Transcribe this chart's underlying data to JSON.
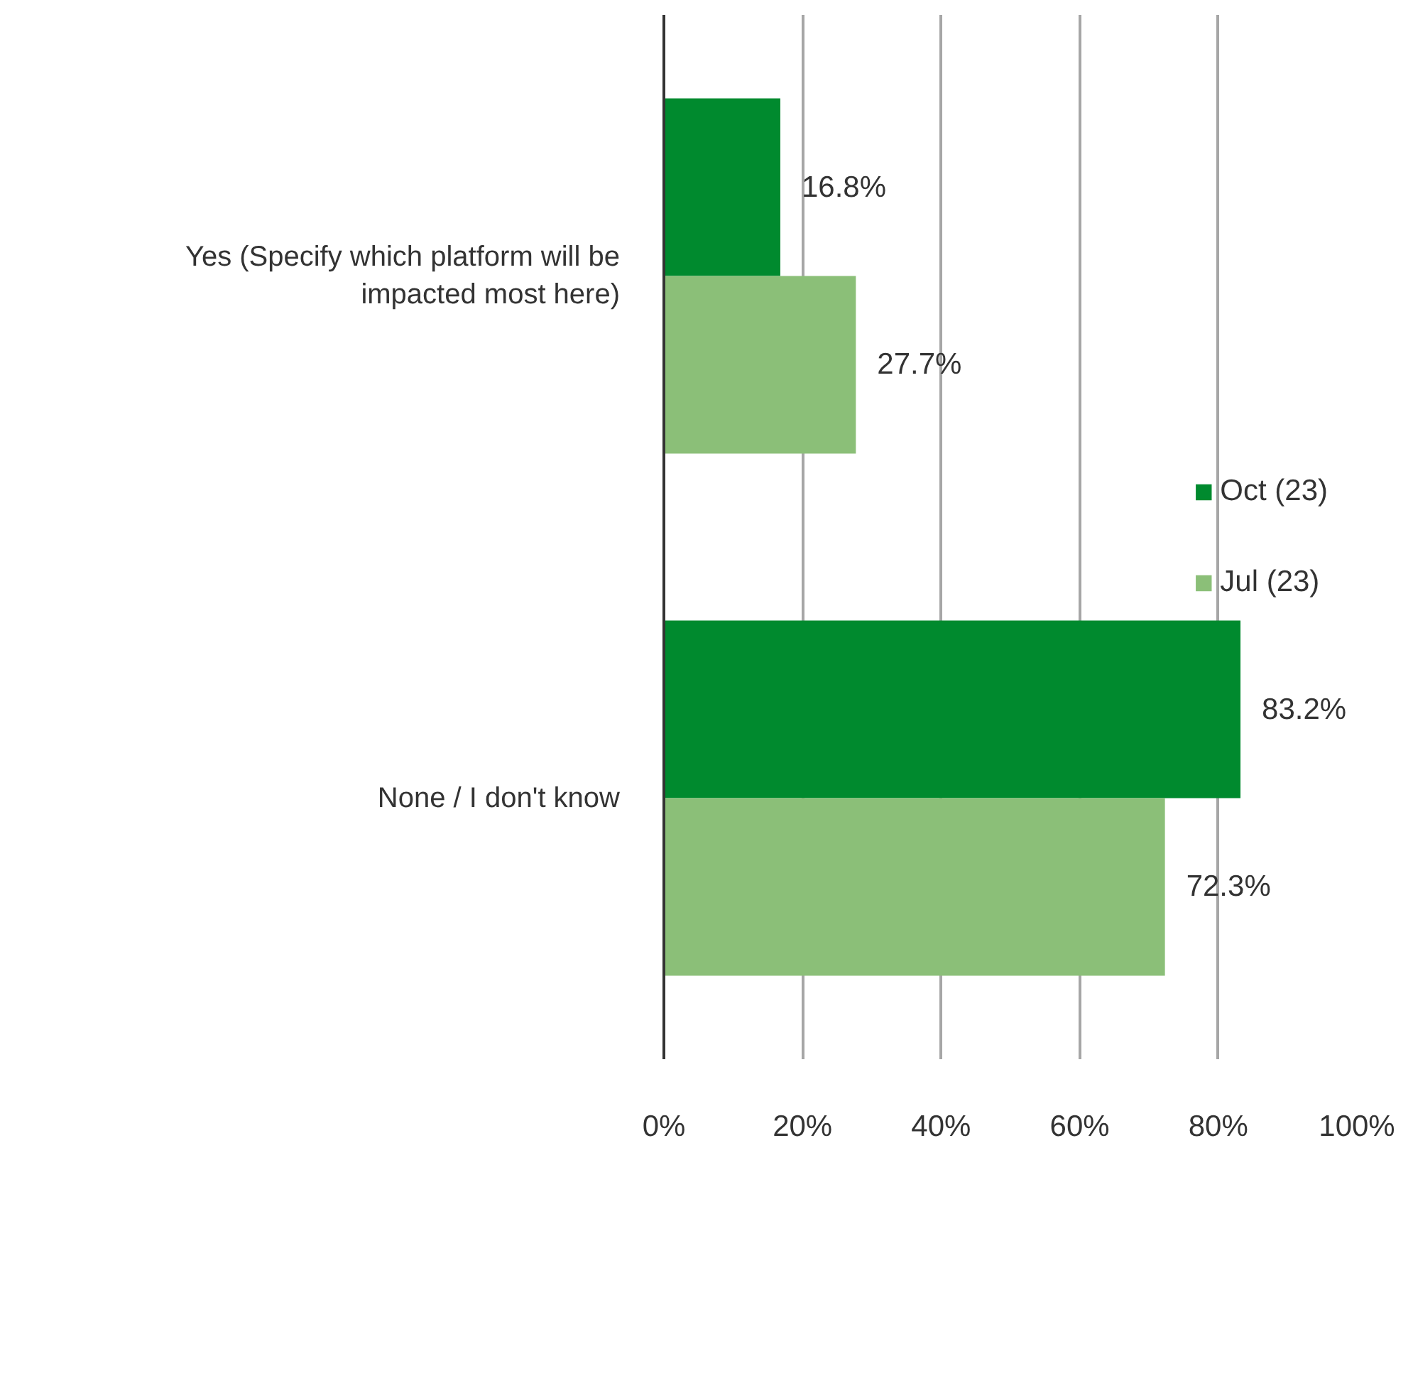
{
  "chart_data": {
    "type": "bar",
    "orientation": "horizontal",
    "categories": [
      "Yes (Specify which platform will be impacted most here)",
      "None / I don't know"
    ],
    "series": [
      {
        "name": "Oct (23)",
        "color": "#008a2e",
        "values": [
          16.8,
          83.2
        ],
        "value_labels": [
          "16.8%",
          "83.2%"
        ]
      },
      {
        "name": "Jul (23)",
        "color": "#8bbf78",
        "values": [
          27.7,
          72.3
        ],
        "value_labels": [
          "27.7%",
          "72.3%"
        ]
      }
    ],
    "xlim": [
      0,
      100
    ],
    "xticks": [
      {
        "value": 0,
        "label": "0%"
      },
      {
        "value": 20,
        "label": "20%"
      },
      {
        "value": 40,
        "label": "40%"
      },
      {
        "value": 60,
        "label": "60%"
      },
      {
        "value": 80,
        "label": "80%"
      },
      {
        "value": 100,
        "label": "100%"
      }
    ],
    "grid": "x",
    "legend": "right"
  }
}
